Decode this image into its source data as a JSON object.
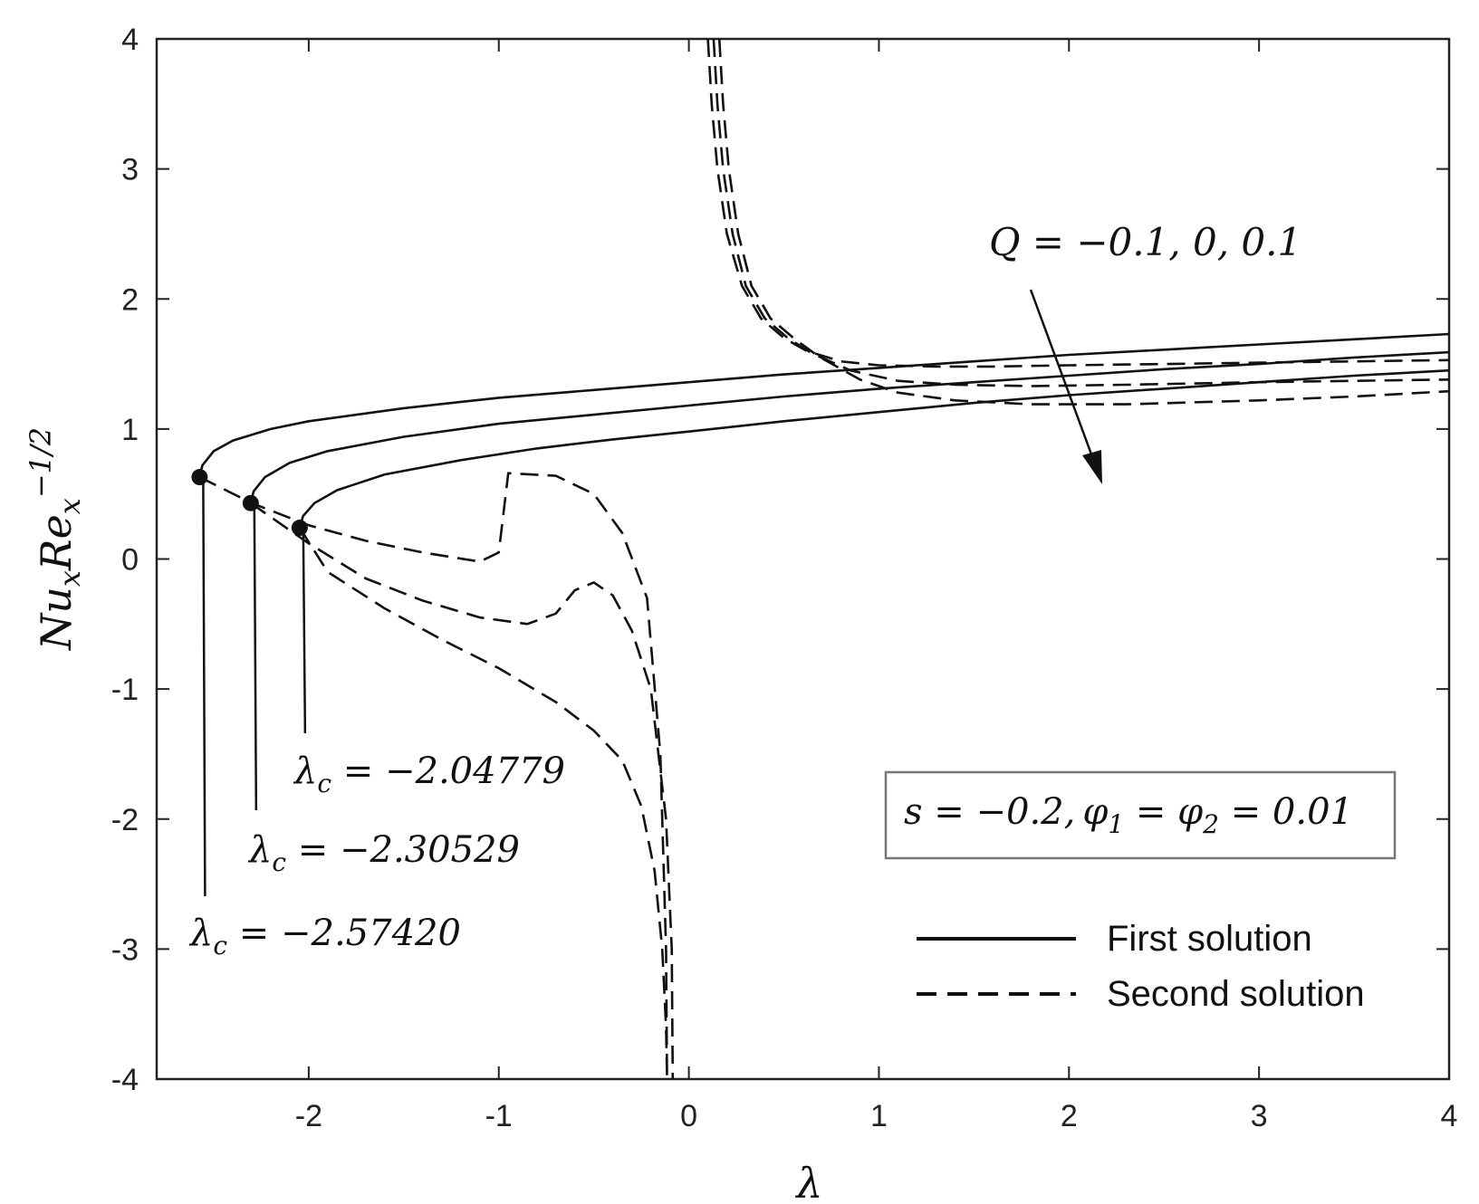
{
  "chart_data": {
    "type": "line",
    "xlabel": "λ",
    "ylabel_base": "Nu",
    "ylabel_sub1": "x",
    "ylabel_mid": "Re",
    "ylabel_sub2": "x",
    "ylabel_sup": "−1/2",
    "xlim": [
      -2.8,
      4
    ],
    "ylim": [
      -4,
      4
    ],
    "xticks": [
      -2,
      -1,
      0,
      1,
      2,
      3,
      4
    ],
    "yticks": [
      -4,
      -3,
      -2,
      -1,
      0,
      1,
      2,
      3,
      4
    ],
    "grid": false,
    "legend_position": "bottom-right",
    "legend": {
      "first": "First solution",
      "second": "Second solution"
    },
    "parameter_box": {
      "s": "s = −0.2,",
      "phi": "φ",
      "phi1_sub": "1",
      "eq": " = ",
      "phi2_sub": "2",
      "value": " = 0.01"
    },
    "q_annotation": "Q = −0.1, 0, 0.1",
    "critical_labels": [
      {
        "lambda": "λ",
        "sub": "c",
        "text": " = −2.57420"
      },
      {
        "lambda": "λ",
        "sub": "c",
        "text": " = −2.30529"
      },
      {
        "lambda": "λ",
        "sub": "c",
        "text": " = −2.04779"
      }
    ],
    "critical_points": [
      {
        "x": -2.5742,
        "y": 0.63
      },
      {
        "x": -2.30529,
        "y": 0.43
      },
      {
        "x": -2.04779,
        "y": 0.24
      }
    ],
    "series": [
      {
        "style": "solid",
        "points": [
          [
            -2.5742,
            0.63
          ],
          [
            -2.56,
            0.72
          ],
          [
            -2.5,
            0.83
          ],
          [
            -2.4,
            0.91
          ],
          [
            -2.2,
            1.0
          ],
          [
            -2.0,
            1.06
          ],
          [
            -1.5,
            1.16
          ],
          [
            -1.0,
            1.24
          ],
          [
            -0.5,
            1.3
          ],
          [
            0,
            1.36
          ],
          [
            0.5,
            1.42
          ],
          [
            1.0,
            1.47
          ],
          [
            1.5,
            1.52
          ],
          [
            2.0,
            1.57
          ],
          [
            2.5,
            1.61
          ],
          [
            3.0,
            1.65
          ],
          [
            3.5,
            1.69
          ],
          [
            4.0,
            1.73
          ]
        ]
      },
      {
        "style": "solid",
        "points": [
          [
            -2.30529,
            0.43
          ],
          [
            -2.29,
            0.52
          ],
          [
            -2.23,
            0.63
          ],
          [
            -2.1,
            0.74
          ],
          [
            -1.9,
            0.83
          ],
          [
            -1.5,
            0.94
          ],
          [
            -1.0,
            1.04
          ],
          [
            -0.5,
            1.11
          ],
          [
            0,
            1.18
          ],
          [
            0.5,
            1.25
          ],
          [
            1.0,
            1.31
          ],
          [
            1.5,
            1.36
          ],
          [
            2.0,
            1.41
          ],
          [
            2.5,
            1.46
          ],
          [
            3.0,
            1.5
          ],
          [
            3.5,
            1.55
          ],
          [
            4.0,
            1.59
          ]
        ]
      },
      {
        "style": "solid",
        "points": [
          [
            -2.04779,
            0.24
          ],
          [
            -2.03,
            0.33
          ],
          [
            -1.97,
            0.43
          ],
          [
            -1.85,
            0.53
          ],
          [
            -1.6,
            0.65
          ],
          [
            -1.2,
            0.76
          ],
          [
            -0.8,
            0.85
          ],
          [
            -0.4,
            0.92
          ],
          [
            0,
            0.98
          ],
          [
            0.5,
            1.06
          ],
          [
            1.0,
            1.13
          ],
          [
            1.5,
            1.2
          ],
          [
            2.0,
            1.26
          ],
          [
            2.5,
            1.31
          ],
          [
            3.0,
            1.36
          ],
          [
            3.5,
            1.41
          ],
          [
            4.0,
            1.45
          ]
        ]
      },
      {
        "style": "dashed",
        "points": [
          [
            -2.5742,
            0.63
          ],
          [
            -2.3,
            0.43
          ],
          [
            -2.0,
            0.26
          ],
          [
            -1.7,
            0.14
          ],
          [
            -1.4,
            0.05
          ],
          [
            -1.1,
            -0.02
          ],
          [
            -1.0,
            0.05
          ],
          [
            -0.95,
            0.66
          ],
          [
            -0.7,
            0.64
          ],
          [
            -0.5,
            0.5
          ],
          [
            -0.35,
            0.2
          ],
          [
            -0.22,
            -0.3
          ],
          [
            -0.15,
            -1.5
          ],
          [
            -0.12,
            -3.0
          ],
          [
            -0.115,
            -4.0
          ]
        ]
      },
      {
        "style": "dashed",
        "points": [
          [
            -2.30529,
            0.43
          ],
          [
            -2.0,
            0.12
          ],
          [
            -1.7,
            -0.15
          ],
          [
            -1.4,
            -0.32
          ],
          [
            -1.1,
            -0.45
          ],
          [
            -0.85,
            -0.5
          ],
          [
            -0.7,
            -0.42
          ],
          [
            -0.6,
            -0.24
          ],
          [
            -0.5,
            -0.18
          ],
          [
            -0.4,
            -0.28
          ],
          [
            -0.3,
            -0.55
          ],
          [
            -0.2,
            -1.0
          ],
          [
            -0.12,
            -2.0
          ],
          [
            -0.09,
            -3.0
          ],
          [
            -0.085,
            -4.0
          ]
        ]
      },
      {
        "style": "dashed",
        "points": [
          [
            -2.04779,
            0.24
          ],
          [
            -1.9,
            -0.1
          ],
          [
            -1.6,
            -0.38
          ],
          [
            -1.3,
            -0.62
          ],
          [
            -1.0,
            -0.84
          ],
          [
            -0.7,
            -1.1
          ],
          [
            -0.5,
            -1.32
          ],
          [
            -0.35,
            -1.55
          ],
          [
            -0.25,
            -1.9
          ],
          [
            -0.18,
            -2.4
          ],
          [
            -0.14,
            -3.0
          ],
          [
            -0.12,
            -3.6
          ],
          [
            -0.115,
            -4.0
          ]
        ]
      },
      {
        "style": "dashed",
        "points": [
          [
            0.1,
            4.0
          ],
          [
            0.12,
            3.5
          ],
          [
            0.15,
            3.0
          ],
          [
            0.2,
            2.5
          ],
          [
            0.28,
            2.1
          ],
          [
            0.38,
            1.85
          ],
          [
            0.5,
            1.7
          ],
          [
            0.62,
            1.6
          ],
          [
            0.8,
            1.52
          ],
          [
            1.0,
            1.49
          ],
          [
            1.3,
            1.48
          ],
          [
            1.6,
            1.48
          ],
          [
            2.0,
            1.49
          ],
          [
            2.5,
            1.5
          ],
          [
            3.0,
            1.51
          ],
          [
            3.5,
            1.52
          ],
          [
            4.0,
            1.53
          ]
        ]
      },
      {
        "style": "dashed",
        "points": [
          [
            0.13,
            4.0
          ],
          [
            0.15,
            3.5
          ],
          [
            0.18,
            3.0
          ],
          [
            0.23,
            2.5
          ],
          [
            0.3,
            2.1
          ],
          [
            0.4,
            1.85
          ],
          [
            0.52,
            1.7
          ],
          [
            0.65,
            1.58
          ],
          [
            0.85,
            1.45
          ],
          [
            1.1,
            1.37
          ],
          [
            1.4,
            1.34
          ],
          [
            1.8,
            1.33
          ],
          [
            2.3,
            1.34
          ],
          [
            3.0,
            1.36
          ],
          [
            3.5,
            1.37
          ],
          [
            4.0,
            1.38
          ]
        ]
      },
      {
        "style": "dashed",
        "points": [
          [
            0.16,
            4.0
          ],
          [
            0.18,
            3.5
          ],
          [
            0.21,
            3.0
          ],
          [
            0.26,
            2.5
          ],
          [
            0.33,
            2.1
          ],
          [
            0.43,
            1.85
          ],
          [
            0.55,
            1.7
          ],
          [
            0.68,
            1.56
          ],
          [
            0.9,
            1.38
          ],
          [
            1.1,
            1.28
          ],
          [
            1.4,
            1.22
          ],
          [
            1.8,
            1.19
          ],
          [
            2.3,
            1.19
          ],
          [
            3.0,
            1.22
          ],
          [
            3.5,
            1.25
          ],
          [
            4.0,
            1.29
          ]
        ]
      }
    ]
  }
}
